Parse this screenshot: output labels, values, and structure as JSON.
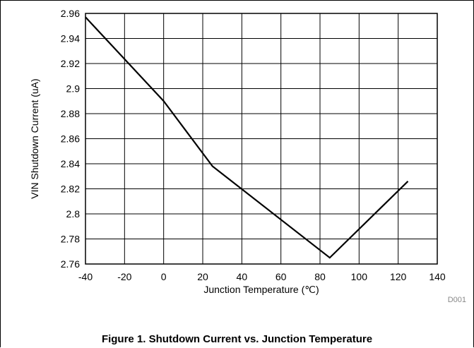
{
  "figure": {
    "caption": "Figure 1. Shutdown Current vs. Junction Temperature",
    "code": "D001"
  },
  "chart_data": {
    "type": "line",
    "xlabel": "Junction Temperature (℃)",
    "ylabel": "VIN Shutdown Current (uA)",
    "xlim": [
      -40,
      140
    ],
    "ylim": [
      2.76,
      2.96
    ],
    "xticks": [
      -40,
      -20,
      0,
      20,
      40,
      60,
      80,
      100,
      120,
      140
    ],
    "yticks": [
      2.76,
      2.78,
      2.8,
      2.82,
      2.84,
      2.86,
      2.88,
      2.9,
      2.92,
      2.94,
      2.96
    ],
    "xtick_labels": [
      "-40",
      "-20",
      "0",
      "20",
      "40",
      "60",
      "80",
      "100",
      "120",
      "140"
    ],
    "ytick_labels": [
      "2.76",
      "2.78",
      "2.8",
      "2.82",
      "2.84",
      "2.86",
      "2.88",
      "2.9",
      "2.92",
      "2.94",
      "2.96"
    ],
    "grid": true,
    "series": [
      {
        "x": [
          -40,
          0,
          25,
          85,
          125
        ],
        "y": [
          2.957,
          2.89,
          2.838,
          2.765,
          2.826
        ]
      }
    ],
    "colors": {
      "line": "#000000",
      "grid": "#000000"
    }
  }
}
